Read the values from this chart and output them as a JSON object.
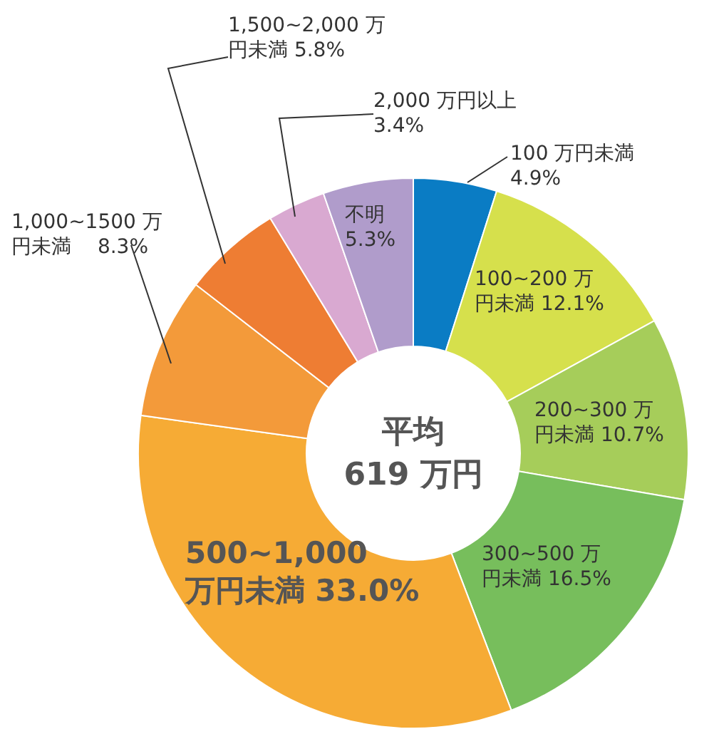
{
  "chart_data": {
    "type": "donut",
    "categories": [
      "100 万円未満",
      "100~200 万円未満",
      "200~300 万円未満",
      "300~500 万円未満",
      "500~1,000万円未満",
      "1,000~1500 万円未満",
      "1,500~2,000 万円未満",
      "2,000 万円以上",
      "不明"
    ],
    "values": [
      4.9,
      12.1,
      10.7,
      16.5,
      33.0,
      8.3,
      5.8,
      3.4,
      5.3
    ],
    "value_labels": [
      "4.9%",
      "12.1%",
      "10.7%",
      "16.5%",
      "33.0%",
      "8.3%",
      "5.8%",
      "3.4%",
      "5.3%"
    ],
    "colors": [
      "#0a7cc4",
      "#d6e04c",
      "#a6cd5a",
      "#77be5c",
      "#f6ab35",
      "#f39a3a",
      "#ee7d33",
      "#d9a9d1",
      "#b09ccb"
    ],
    "annotations": [
      "平均\n619 万円"
    ]
  }
}
